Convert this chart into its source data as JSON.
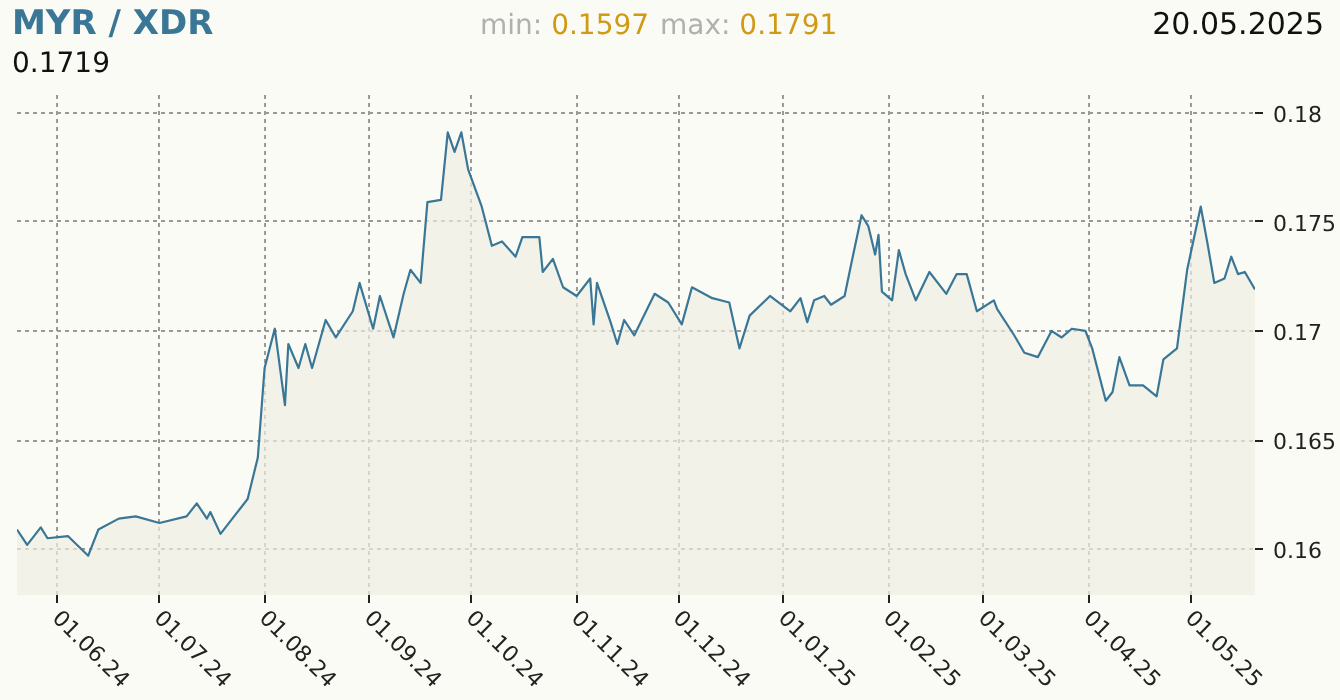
{
  "chart_data": {
    "type": "area",
    "title": "MYR / XDR",
    "annotations": [
      "min: 0.1597",
      "max: 0.1791",
      "20.05.2025",
      "0.1719"
    ],
    "x": [
      "2024-05-20",
      "2024-05-23",
      "2024-05-27",
      "2024-05-29",
      "2024-06-04",
      "2024-06-10",
      "2024-06-13",
      "2024-06-19",
      "2024-06-24",
      "2024-07-01",
      "2024-07-09",
      "2024-07-12",
      "2024-07-15",
      "2024-07-16",
      "2024-07-19",
      "2024-07-23",
      "2024-07-27",
      "2024-07-30",
      "2024-08-01",
      "2024-08-04",
      "2024-08-07",
      "2024-08-08",
      "2024-08-11",
      "2024-08-13",
      "2024-08-15",
      "2024-08-19",
      "2024-08-22",
      "2024-08-27",
      "2024-08-29",
      "2024-09-02",
      "2024-09-04",
      "2024-09-08",
      "2024-09-11",
      "2024-09-13",
      "2024-09-16",
      "2024-09-18",
      "2024-09-22",
      "2024-09-24",
      "2024-09-26",
      "2024-09-28",
      "2024-09-30",
      "2024-10-04",
      "2024-10-07",
      "2024-10-10",
      "2024-10-14",
      "2024-10-16",
      "2024-10-21",
      "2024-10-22",
      "2024-10-25",
      "2024-10-28",
      "2024-11-01",
      "2024-11-05",
      "2024-11-06",
      "2024-11-07",
      "2024-11-11",
      "2024-11-13",
      "2024-11-15",
      "2024-11-18",
      "2024-11-24",
      "2024-11-28",
      "2024-12-02",
      "2024-12-05",
      "2024-12-11",
      "2024-12-16",
      "2024-12-19",
      "2024-12-22",
      "2024-12-28",
      "2025-01-03",
      "2025-01-06",
      "2025-01-08",
      "2025-01-10",
      "2025-01-13",
      "2025-01-15",
      "2025-01-19",
      "2025-01-21",
      "2025-01-24",
      "2025-01-26",
      "2025-01-28",
      "2025-01-29",
      "2025-01-30",
      "2025-02-02",
      "2025-02-04",
      "2025-02-06",
      "2025-02-09",
      "2025-02-13",
      "2025-02-18",
      "2025-02-21",
      "2025-02-24",
      "2025-02-27",
      "2025-03-04",
      "2025-03-05",
      "2025-03-10",
      "2025-03-13",
      "2025-03-17",
      "2025-03-21",
      "2025-03-24",
      "2025-03-27",
      "2025-03-31",
      "2025-04-02",
      "2025-04-06",
      "2025-04-08",
      "2025-04-10",
      "2025-04-13",
      "2025-04-17",
      "2025-04-21",
      "2025-04-23",
      "2025-04-27",
      "2025-04-30",
      "2025-05-04",
      "2025-05-06",
      "2025-05-08",
      "2025-05-11",
      "2025-05-13",
      "2025-05-15",
      "2025-05-17",
      "2025-05-20"
    ],
    "series": [
      {
        "color": "#3a7797",
        "values": [
          0.1609,
          0.1602,
          0.161,
          0.1605,
          0.1606,
          0.1597,
          0.1609,
          0.1614,
          0.1615,
          0.1612,
          0.1615,
          0.1621,
          0.1614,
          0.1617,
          0.1607,
          0.1615,
          0.1623,
          0.1642,
          0.1683,
          0.1701,
          0.1666,
          0.1694,
          0.1683,
          0.1694,
          0.1683,
          0.1705,
          0.1697,
          0.1709,
          0.1722,
          0.1701,
          0.1716,
          0.1697,
          0.1717,
          0.1728,
          0.1722,
          0.1759,
          0.176,
          0.1791,
          0.1782,
          0.1791,
          0.1774,
          0.1757,
          0.1739,
          0.1741,
          0.1734,
          0.1743,
          0.1743,
          0.1727,
          0.1733,
          0.172,
          0.1716,
          0.1724,
          0.1703,
          0.1722,
          0.1704,
          0.1694,
          0.1705,
          0.1698,
          0.1717,
          0.1713,
          0.1703,
          0.172,
          0.1715,
          0.1713,
          0.1692,
          0.1707,
          0.1716,
          0.1709,
          0.1715,
          0.1704,
          0.1714,
          0.1716,
          0.1712,
          0.1716,
          0.1731,
          0.1753,
          0.1748,
          0.1735,
          0.1744,
          0.1718,
          0.1714,
          0.1737,
          0.1726,
          0.1714,
          0.1727,
          0.1717,
          0.1726,
          0.1726,
          0.1709,
          0.1714,
          0.171,
          0.1698,
          0.169,
          0.1688,
          0.17,
          0.1697,
          0.1701,
          0.17,
          0.1692,
          0.1668,
          0.1672,
          0.1688,
          0.1675,
          0.1675,
          0.167,
          0.1687,
          0.1692,
          0.1728,
          0.1757,
          0.174,
          0.1722,
          0.1724,
          0.1734,
          0.1726,
          0.1727,
          0.1719
        ]
      }
    ],
    "xlim": [
      "2024-05-20",
      "2025-05-20"
    ],
    "ylim": [
      0.1579,
      0.1809
    ],
    "xticks": [
      {
        "value": "2024-06-01",
        "label": "01.06.24"
      },
      {
        "value": "2024-07-01",
        "label": "01.07.24"
      },
      {
        "value": "2024-08-01",
        "label": "01.08.24"
      },
      {
        "value": "2024-09-01",
        "label": "01.09.24"
      },
      {
        "value": "2024-10-01",
        "label": "01.10.24"
      },
      {
        "value": "2024-11-01",
        "label": "01.11.24"
      },
      {
        "value": "2024-12-01",
        "label": "01.12.24"
      },
      {
        "value": "2025-01-01",
        "label": "01.01.25"
      },
      {
        "value": "2025-02-01",
        "label": "01.02.25"
      },
      {
        "value": "2025-03-01",
        "label": "01.03.25"
      },
      {
        "value": "2025-04-01",
        "label": "01.04.25"
      },
      {
        "value": "2025-05-01",
        "label": "01.05.25"
      }
    ],
    "yticks": [
      0.16,
      0.165,
      0.17,
      0.175,
      0.18
    ],
    "grid": true
  }
}
